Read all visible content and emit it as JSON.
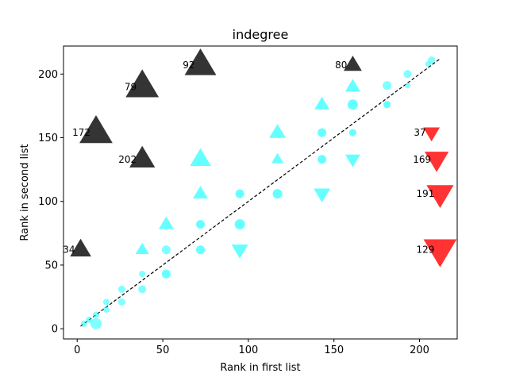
{
  "chart_data": {
    "type": "scatter",
    "title": "indegree",
    "xlabel": "Rank in first list",
    "ylabel": "Rank in second list",
    "xlim": [
      -8,
      222
    ],
    "ylim": [
      -8,
      222
    ],
    "x_ticks": [
      0,
      50,
      100,
      150,
      200
    ],
    "y_ticks": [
      0,
      50,
      100,
      150,
      200
    ],
    "reference_line": {
      "style": "dashed",
      "color": "#000000",
      "from": [
        2,
        2
      ],
      "to": [
        212,
        212
      ]
    },
    "colors": {
      "same": "#00ffff",
      "up": "#00ffff",
      "down": "#00ffff",
      "outlier_high": "#111111",
      "outlier_low": "#ff0000"
    },
    "points": [
      {
        "x": 4,
        "y": 4,
        "marker": "circle",
        "size": 4,
        "alpha": 0.5
      },
      {
        "x": 7,
        "y": 7,
        "marker": "circle",
        "size": 4,
        "alpha": 0.5
      },
      {
        "x": 11,
        "y": 4,
        "marker": "circle",
        "size": 7,
        "alpha": 0.5
      },
      {
        "x": 11,
        "y": 11,
        "marker": "circle",
        "size": 4,
        "alpha": 0.5
      },
      {
        "x": 17,
        "y": 15,
        "marker": "circle",
        "size": 4,
        "alpha": 0.5
      },
      {
        "x": 17,
        "y": 21,
        "marker": "circle",
        "size": 4,
        "alpha": 0.5
      },
      {
        "x": 26,
        "y": 21,
        "marker": "circle",
        "size": 4.5,
        "alpha": 0.5
      },
      {
        "x": 26,
        "y": 31,
        "marker": "circle",
        "size": 4.5,
        "alpha": 0.5
      },
      {
        "x": 38,
        "y": 31,
        "marker": "circle",
        "size": 5,
        "alpha": 0.5
      },
      {
        "x": 38,
        "y": 43,
        "marker": "circle",
        "size": 4,
        "alpha": 0.5
      },
      {
        "x": 38,
        "y": 62,
        "marker": "triangle-up",
        "size": 9,
        "alpha": 0.6
      },
      {
        "x": 52,
        "y": 43,
        "marker": "circle",
        "size": 5.5,
        "alpha": 0.6
      },
      {
        "x": 52,
        "y": 62,
        "marker": "circle",
        "size": 5.5,
        "alpha": 0.5
      },
      {
        "x": 52,
        "y": 82,
        "marker": "triangle-up",
        "size": 10,
        "alpha": 0.6
      },
      {
        "x": 72,
        "y": 62,
        "marker": "circle",
        "size": 5.5,
        "alpha": 0.6
      },
      {
        "x": 72,
        "y": 82,
        "marker": "circle",
        "size": 5.5,
        "alpha": 0.6
      },
      {
        "x": 72,
        "y": 106,
        "marker": "triangle-up",
        "size": 10,
        "alpha": 0.6
      },
      {
        "x": 72,
        "y": 133,
        "marker": "triangle-up",
        "size": 14,
        "alpha": 0.6
      },
      {
        "x": 95,
        "y": 62,
        "marker": "triangle-down",
        "size": 11,
        "alpha": 0.6
      },
      {
        "x": 95,
        "y": 82,
        "marker": "circle",
        "size": 6.5,
        "alpha": 0.6
      },
      {
        "x": 95,
        "y": 106,
        "marker": "circle",
        "size": 5.5,
        "alpha": 0.6
      },
      {
        "x": 117,
        "y": 106,
        "marker": "circle",
        "size": 6,
        "alpha": 0.6
      },
      {
        "x": 117,
        "y": 133,
        "marker": "triangle-up",
        "size": 8,
        "alpha": 0.6
      },
      {
        "x": 117,
        "y": 154,
        "marker": "triangle-up",
        "size": 11,
        "alpha": 0.6
      },
      {
        "x": 143,
        "y": 106,
        "marker": "triangle-down",
        "size": 11,
        "alpha": 0.6
      },
      {
        "x": 143,
        "y": 133,
        "marker": "circle",
        "size": 5.5,
        "alpha": 0.6
      },
      {
        "x": 143,
        "y": 154,
        "marker": "circle",
        "size": 5.5,
        "alpha": 0.6
      },
      {
        "x": 143,
        "y": 176,
        "marker": "triangle-up",
        "size": 10,
        "alpha": 0.6
      },
      {
        "x": 161,
        "y": 133,
        "marker": "triangle-down",
        "size": 10,
        "alpha": 0.6
      },
      {
        "x": 161,
        "y": 154,
        "marker": "circle",
        "size": 4.5,
        "alpha": 0.6
      },
      {
        "x": 161,
        "y": 176,
        "marker": "circle",
        "size": 6.5,
        "alpha": 0.6
      },
      {
        "x": 161,
        "y": 190,
        "marker": "triangle-up",
        "size": 10,
        "alpha": 0.6
      },
      {
        "x": 181,
        "y": 176,
        "marker": "circle",
        "size": 4.5,
        "alpha": 0.6
      },
      {
        "x": 181,
        "y": 191,
        "marker": "circle",
        "size": 5.5,
        "alpha": 0.5
      },
      {
        "x": 193,
        "y": 191,
        "marker": "circle",
        "size": 3.5,
        "alpha": 0.5
      },
      {
        "x": 193,
        "y": 200,
        "marker": "circle",
        "size": 5,
        "alpha": 0.5
      },
      {
        "x": 205,
        "y": 208,
        "marker": "circle",
        "size": 3.5,
        "alpha": 0.5
      },
      {
        "x": 207,
        "y": 211,
        "marker": "circle",
        "size": 4.5,
        "alpha": 0.5
      },
      {
        "x": 2,
        "y": 62,
        "marker": "triangle-up",
        "size": 14,
        "alpha": 0.85,
        "group": "outlier_high",
        "label": "34"
      },
      {
        "x": 11,
        "y": 154,
        "marker": "triangle-up",
        "size": 22,
        "alpha": 0.85,
        "group": "outlier_high",
        "label": "172"
      },
      {
        "x": 38,
        "y": 133,
        "marker": "triangle-up",
        "size": 17,
        "alpha": 0.85,
        "group": "outlier_high",
        "label": "202"
      },
      {
        "x": 38,
        "y": 190,
        "marker": "triangle-up",
        "size": 22,
        "alpha": 0.85,
        "group": "outlier_high",
        "label": "79"
      },
      {
        "x": 72,
        "y": 207,
        "marker": "triangle-up",
        "size": 21,
        "alpha": 0.85,
        "group": "outlier_high",
        "label": "92"
      },
      {
        "x": 161,
        "y": 207,
        "marker": "triangle-up",
        "size": 12,
        "alpha": 0.85,
        "group": "outlier_high",
        "label": "80"
      },
      {
        "x": 207,
        "y": 154,
        "marker": "triangle-down",
        "size": 11,
        "alpha": 0.8,
        "group": "outlier_low",
        "label": "37"
      },
      {
        "x": 210,
        "y": 133,
        "marker": "triangle-down",
        "size": 16,
        "alpha": 0.8,
        "group": "outlier_low",
        "label": "169"
      },
      {
        "x": 212,
        "y": 106,
        "marker": "triangle-down",
        "size": 18,
        "alpha": 0.8,
        "group": "outlier_low",
        "label": "191"
      },
      {
        "x": 212,
        "y": 62,
        "marker": "triangle-down",
        "size": 22,
        "alpha": 0.8,
        "group": "outlier_low",
        "label": "129"
      }
    ]
  }
}
